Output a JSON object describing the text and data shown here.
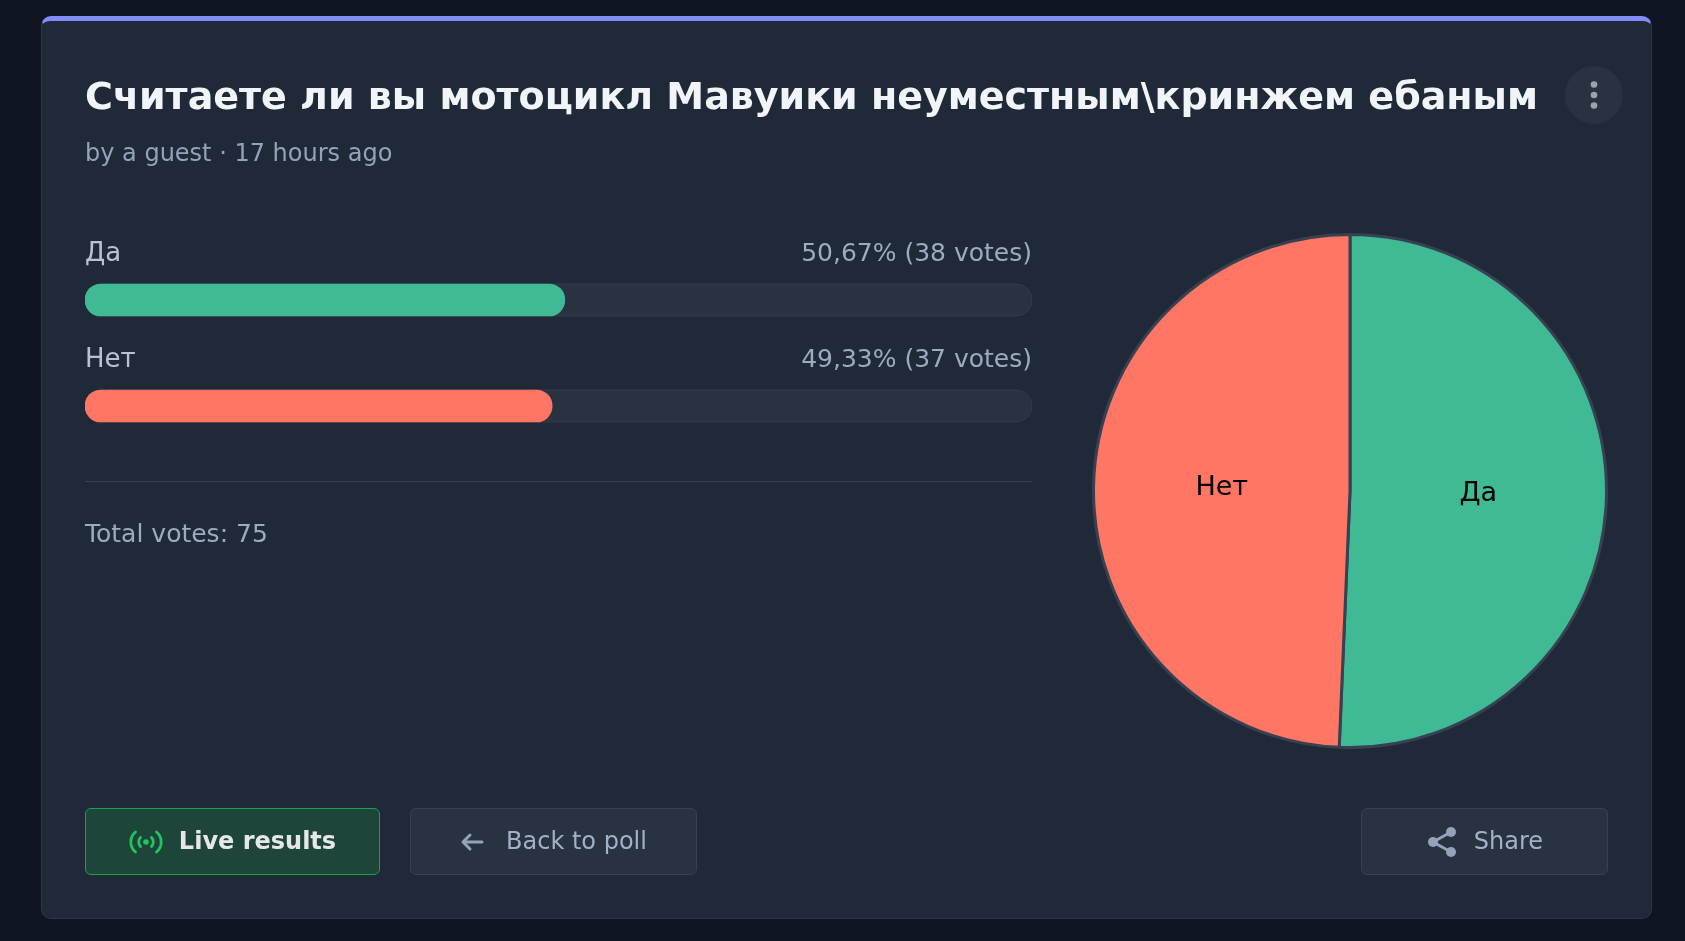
{
  "chart_data": [
    {
      "type": "bar",
      "orientation": "horizontal",
      "title": "Считаете ли вы мотоцикл Мавуики неуместным\\кринжем ебаным",
      "subtitle": "by a guest · 17 hours ago",
      "categories": [
        "Да",
        "Нет"
      ],
      "values": [
        50.67,
        49.33
      ],
      "colors": [
        "#40ba94",
        "#ff7664"
      ],
      "value_labels": [
        "50,67% (38 votes)",
        "49,33% (37 votes)"
      ],
      "xlim": [
        0,
        100
      ],
      "tick_labels": "y",
      "annotations": [
        "Total votes: 75",
        "Live results",
        "Back to poll",
        "Share"
      ]
    },
    {
      "type": "pie",
      "categories": [
        "Да",
        "Нет"
      ],
      "values": [
        50.67,
        49.33
      ],
      "colors": [
        "#40ba94",
        "#ff7664"
      ]
    }
  ]
}
